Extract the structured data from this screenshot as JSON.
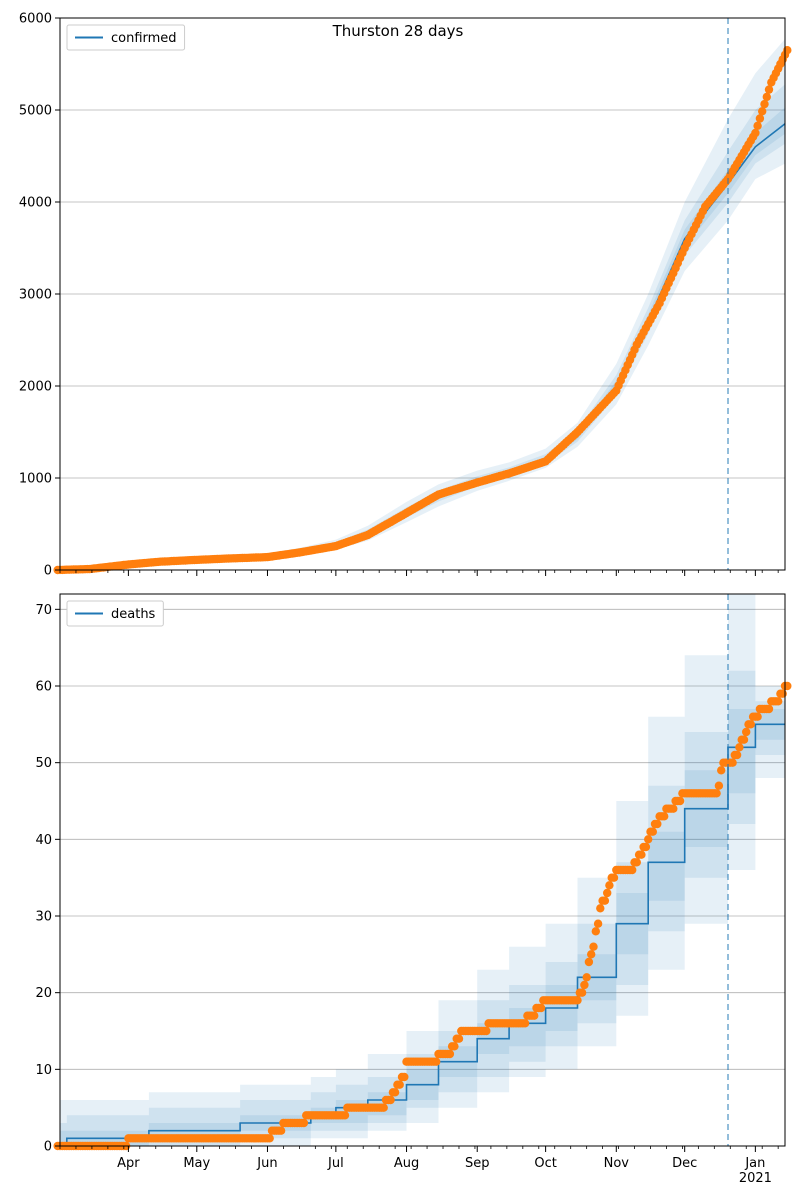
{
  "figure": {
    "title": "Thurston 28 days"
  },
  "colors": {
    "model_line": "#1f77b4",
    "observed_points": "#ff7f0e",
    "band": "#1f77b4",
    "grid": "#b0b0b0",
    "forecast_line": "#1f77b4"
  },
  "chart_data": [
    {
      "type": "line",
      "panel": "confirmed",
      "x_unit": "days since 2020-03-02",
      "xlim": [
        0,
        318
      ],
      "ylim": [
        0,
        6000
      ],
      "yticks": [
        0,
        1000,
        2000,
        3000,
        4000,
        5000,
        6000
      ],
      "grid": "horizontal",
      "legend": {
        "entries": [
          "confirmed"
        ],
        "placement": "top-left"
      },
      "forecast_start": "2020-12-20",
      "model": {
        "name": "confirmed",
        "x": [
          "2020-03-01",
          "2020-04-01",
          "2020-05-01",
          "2020-06-01",
          "2020-06-15",
          "2020-07-01",
          "2020-07-15",
          "2020-08-01",
          "2020-08-15",
          "2020-09-01",
          "2020-09-15",
          "2020-10-01",
          "2020-10-15",
          "2020-11-01",
          "2020-11-15",
          "2020-12-01",
          "2020-12-20",
          "2021-01-01",
          "2021-01-15"
        ],
        "y": [
          0,
          40,
          110,
          140,
          190,
          270,
          400,
          620,
          800,
          960,
          1060,
          1200,
          1450,
          2000,
          2700,
          3600,
          4200,
          4600,
          4870
        ],
        "bands": [
          {
            "level": "outer",
            "lower": [
              0,
              20,
              80,
              110,
              150,
              220,
              320,
              520,
              690,
              860,
              970,
              1110,
              1340,
              1800,
              2440,
              3250,
              3800,
              4250,
              4430
            ],
            "upper": [
              0,
              70,
              150,
              180,
              240,
              330,
              480,
              740,
              930,
              1080,
              1170,
              1320,
              1600,
              2240,
              3000,
              4000,
              4900,
              5400,
              5800
            ]
          },
          {
            "level": "middle",
            "lower": [
              0,
              30,
              95,
              125,
              170,
              245,
              360,
              570,
              745,
              910,
              1015,
              1155,
              1395,
              1900,
              2570,
              3420,
              3990,
              4420,
              4650
            ],
            "upper": [
              0,
              55,
              130,
              160,
              215,
              300,
              440,
              680,
              865,
              1020,
              1115,
              1260,
              1525,
              2120,
              2850,
              3800,
              4550,
              5000,
              5300
            ]
          },
          {
            "level": "inner",
            "lower": [
              0,
              35,
              100,
              132,
              180,
              258,
              380,
              595,
              772,
              935,
              1038,
              1178,
              1422,
              1950,
              2635,
              3510,
              4095,
              4510,
              4760
            ],
            "upper": [
              0,
              47,
              120,
              150,
              202,
              285,
              420,
              648,
              830,
              990,
              1088,
              1230,
              1488,
              2060,
              2775,
              3700,
              4350,
              4750,
              5050
            ]
          }
        ]
      },
      "observed": {
        "name": "observed confirmed",
        "x": [
          "2020-03-01",
          "2020-03-15",
          "2020-04-01",
          "2020-04-15",
          "2020-05-01",
          "2020-05-15",
          "2020-06-01",
          "2020-06-15",
          "2020-07-01",
          "2020-07-15",
          "2020-08-01",
          "2020-08-15",
          "2020-09-01",
          "2020-09-15",
          "2020-10-01",
          "2020-10-15",
          "2020-11-01",
          "2020-11-10",
          "2020-11-20",
          "2020-12-01",
          "2020-12-10",
          "2020-12-20",
          "2021-01-01",
          "2021-01-08",
          "2021-01-15"
        ],
        "y": [
          0,
          10,
          60,
          90,
          110,
          125,
          140,
          190,
          260,
          380,
          620,
          820,
          950,
          1050,
          1180,
          1500,
          1950,
          2450,
          2900,
          3500,
          3950,
          4250,
          4750,
          5300,
          5650
        ]
      }
    },
    {
      "type": "line",
      "panel": "deaths",
      "x_unit": "days since 2020-03-02",
      "xlim": [
        0,
        318
      ],
      "ylim": [
        0,
        72
      ],
      "yticks": [
        0,
        10,
        20,
        30,
        40,
        50,
        60,
        70
      ],
      "xticks": [
        "Apr",
        "May",
        "Jun",
        "Jul",
        "Aug",
        "Sep",
        "Oct",
        "Nov",
        "Dec",
        "Jan\n2021"
      ],
      "xtick_dates": [
        "2020-04-01",
        "2020-05-01",
        "2020-06-01",
        "2020-07-01",
        "2020-08-01",
        "2020-09-01",
        "2020-10-01",
        "2020-11-01",
        "2020-12-01",
        "2021-01-01"
      ],
      "grid": "horizontal",
      "legend": {
        "entries": [
          "deaths"
        ],
        "placement": "top-left"
      },
      "forecast_start": "2020-12-20",
      "model": {
        "name": "deaths",
        "x": [
          "2020-03-01",
          "2020-03-05",
          "2020-04-10",
          "2020-05-20",
          "2020-06-20",
          "2020-07-01",
          "2020-07-15",
          "2020-08-01",
          "2020-08-15",
          "2020-09-01",
          "2020-09-15",
          "2020-10-01",
          "2020-10-15",
          "2020-11-01",
          "2020-11-15",
          "2020-12-01",
          "2020-12-20",
          "2021-01-01",
          "2021-01-15"
        ],
        "y": [
          0,
          1,
          2,
          3,
          4,
          5,
          6,
          8,
          11,
          14,
          16,
          18,
          22,
          29,
          37,
          44,
          52,
          55,
          57
        ],
        "bands": [
          {
            "level": "outer",
            "lower": [
              0,
              0,
              0,
              0,
              1,
              1,
              2,
              3,
              5,
              7,
              9,
              10,
              13,
              17,
              23,
              29,
              36,
              48,
              51
            ],
            "upper": [
              6,
              6,
              7,
              8,
              9,
              10,
              12,
              15,
              19,
              23,
              26,
              29,
              35,
              45,
              56,
              64,
              72,
              60,
              70
            ]
          },
          {
            "level": "middle",
            "lower": [
              0,
              0,
              0,
              1,
              2,
              2,
              3,
              5,
              7,
              9,
              11,
              13,
              16,
              21,
              28,
              35,
              42,
              51,
              53
            ],
            "upper": [
              3,
              4,
              5,
              6,
              7,
              8,
              9,
              12,
              15,
              19,
              21,
              24,
              29,
              37,
              47,
              54,
              62,
              58,
              64
            ]
          },
          {
            "level": "inner",
            "lower": [
              0,
              0,
              1,
              2,
              3,
              3,
              4,
              6,
              9,
              12,
              13,
              15,
              19,
              25,
              32,
              39,
              46,
              53,
              55
            ],
            "upper": [
              2,
              2,
              3,
              4,
              5,
              6,
              7,
              10,
              13,
              16,
              18,
              21,
              25,
              33,
              41,
              49,
              57,
              57,
              60
            ]
          }
        ]
      },
      "observed": {
        "name": "observed deaths",
        "x": [
          "2020-03-01",
          "2020-03-31",
          "2020-04-01",
          "2020-06-01",
          "2020-06-05",
          "2020-06-10",
          "2020-06-15",
          "2020-06-20",
          "2020-07-01",
          "2020-07-10",
          "2020-07-20",
          "2020-07-25",
          "2020-07-31",
          "2020-08-01",
          "2020-08-10",
          "2020-08-20",
          "2020-08-25",
          "2020-09-01",
          "2020-09-10",
          "2020-09-20",
          "2020-09-25",
          "2020-10-01",
          "2020-10-15",
          "2020-10-18",
          "2020-10-22",
          "2020-10-25",
          "2020-11-01",
          "2020-11-08",
          "2020-11-15",
          "2020-11-20",
          "2020-11-25",
          "2020-12-01",
          "2020-12-15",
          "2020-12-18",
          "2020-12-22",
          "2020-12-25",
          "2020-12-28",
          "2021-01-01",
          "2021-01-05",
          "2021-01-10",
          "2021-01-15"
        ],
        "y": [
          0,
          0,
          1,
          1,
          2,
          3,
          3,
          4,
          4,
          5,
          5,
          6,
          9,
          11,
          11,
          12,
          15,
          15,
          16,
          16,
          17,
          19,
          19,
          21,
          26,
          31,
          36,
          36,
          40,
          43,
          44,
          46,
          46,
          50,
          50,
          52,
          54,
          56,
          57,
          58,
          60
        ]
      }
    }
  ]
}
